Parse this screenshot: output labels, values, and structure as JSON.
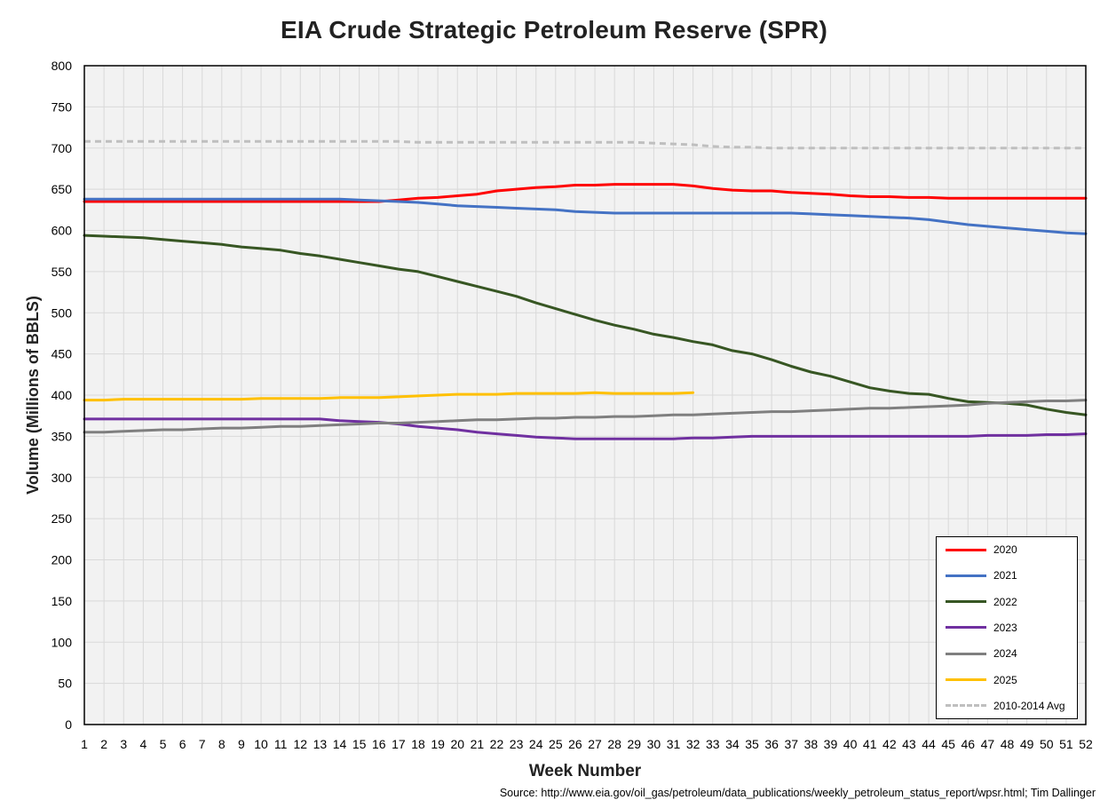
{
  "chart_data": {
    "type": "line",
    "title": "EIA Crude Strategic Petroleum Reserve (SPR)",
    "xlabel": "Week Number",
    "ylabel": "Volume (Millions of BBLS)",
    "xlim": [
      1,
      52
    ],
    "ylim": [
      0,
      800
    ],
    "y_ticks": [
      0,
      50,
      100,
      150,
      200,
      250,
      300,
      350,
      400,
      450,
      500,
      550,
      600,
      650,
      700,
      750,
      800
    ],
    "x_ticks": [
      1,
      2,
      3,
      4,
      5,
      6,
      7,
      8,
      9,
      10,
      11,
      12,
      13,
      14,
      15,
      16,
      17,
      18,
      19,
      20,
      21,
      22,
      23,
      24,
      25,
      26,
      27,
      28,
      29,
      30,
      31,
      32,
      33,
      34,
      35,
      36,
      37,
      38,
      39,
      40,
      41,
      42,
      43,
      44,
      45,
      46,
      47,
      48,
      49,
      50,
      51,
      52
    ],
    "grid": true,
    "legend_position": "bottom-right",
    "source": "Source: http://www.eia.gov/oil_gas/petroleum/data_publications/weekly_petroleum_status_report/wpsr.html; Tim Dallinger",
    "series": [
      {
        "name": "2020",
        "color": "#ff0000",
        "dashed": false,
        "values": [
          635,
          635,
          635,
          635,
          635,
          635,
          635,
          635,
          635,
          635,
          635,
          635,
          635,
          635,
          635,
          635,
          637,
          639,
          640,
          642,
          644,
          648,
          650,
          652,
          653,
          655,
          655,
          656,
          656,
          656,
          656,
          654,
          651,
          649,
          648,
          648,
          646,
          645,
          644,
          642,
          641,
          641,
          640,
          640,
          639,
          639,
          639,
          639,
          639,
          639,
          639,
          639
        ]
      },
      {
        "name": "2021",
        "color": "#4472c4",
        "dashed": false,
        "values": [
          638,
          638,
          638,
          638,
          638,
          638,
          638,
          638,
          638,
          638,
          638,
          638,
          638,
          638,
          637,
          636,
          635,
          634,
          632,
          630,
          629,
          628,
          627,
          626,
          625,
          623,
          622,
          621,
          621,
          621,
          621,
          621,
          621,
          621,
          621,
          621,
          621,
          620,
          619,
          618,
          617,
          616,
          615,
          613,
          610,
          607,
          605,
          603,
          601,
          599,
          597,
          596
        ]
      },
      {
        "name": "2022",
        "color": "#375623",
        "dashed": false,
        "values": [
          594,
          593,
          592,
          591,
          589,
          587,
          585,
          583,
          580,
          578,
          576,
          572,
          569,
          565,
          561,
          557,
          553,
          550,
          544,
          538,
          532,
          526,
          520,
          512,
          505,
          498,
          491,
          485,
          480,
          474,
          470,
          465,
          461,
          454,
          450,
          443,
          435,
          428,
          423,
          416,
          409,
          405,
          402,
          401,
          396,
          392,
          391,
          390,
          388,
          383,
          379,
          376
        ]
      },
      {
        "name": "2023",
        "color": "#7030a0",
        "dashed": false,
        "values": [
          371,
          371,
          371,
          371,
          371,
          371,
          371,
          371,
          371,
          371,
          371,
          371,
          371,
          369,
          368,
          367,
          365,
          362,
          360,
          358,
          355,
          353,
          351,
          349,
          348,
          347,
          347,
          347,
          347,
          347,
          347,
          348,
          348,
          349,
          350,
          350,
          350,
          350,
          350,
          350,
          350,
          350,
          350,
          350,
          350,
          350,
          351,
          351,
          351,
          352,
          352,
          353
        ]
      },
      {
        "name": "2024",
        "color": "#7f7f7f",
        "dashed": false,
        "values": [
          355,
          355,
          356,
          357,
          358,
          358,
          359,
          360,
          360,
          361,
          362,
          362,
          363,
          364,
          365,
          366,
          366,
          367,
          368,
          369,
          370,
          370,
          371,
          372,
          372,
          373,
          373,
          374,
          374,
          375,
          376,
          376,
          377,
          378,
          379,
          380,
          380,
          381,
          382,
          383,
          384,
          384,
          385,
          386,
          387,
          388,
          390,
          391,
          392,
          393,
          393,
          394
        ]
      },
      {
        "name": "2025",
        "color": "#ffc000",
        "dashed": false,
        "values": [
          394,
          394,
          395,
          395,
          395,
          395,
          395,
          395,
          395,
          396,
          396,
          396,
          396,
          397,
          397,
          397,
          398,
          399,
          400,
          401,
          401,
          401,
          402,
          402,
          402,
          402,
          403,
          402,
          402,
          402,
          402,
          403,
          null,
          null,
          null,
          null,
          null,
          null,
          null,
          null,
          null,
          null,
          null,
          null,
          null,
          null,
          null,
          null,
          null,
          null,
          null,
          null
        ]
      },
      {
        "name": "2010-2014 Avg",
        "color": "#bfbfbf",
        "dashed": true,
        "values": [
          708,
          708,
          708,
          708,
          708,
          708,
          708,
          708,
          708,
          708,
          708,
          708,
          708,
          708,
          708,
          708,
          708,
          707,
          707,
          707,
          707,
          707,
          707,
          707,
          707,
          707,
          707,
          707,
          707,
          706,
          705,
          704,
          702,
          701,
          701,
          700,
          700,
          700,
          700,
          700,
          700,
          700,
          700,
          700,
          700,
          700,
          700,
          700,
          700,
          700,
          700,
          700
        ]
      }
    ]
  }
}
